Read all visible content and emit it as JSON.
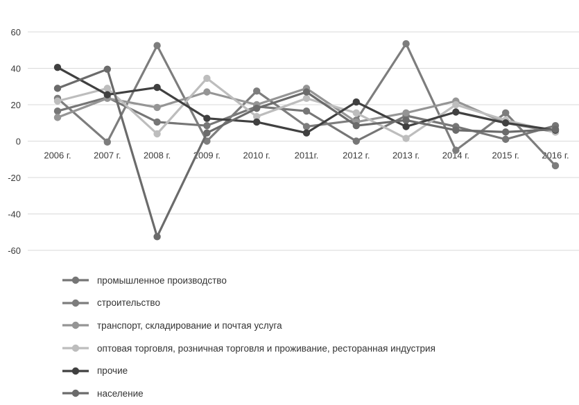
{
  "chart_data": {
    "type": "line",
    "unit_label": "%",
    "categories": [
      "2006 г.",
      "2007 г.",
      "2008 г.",
      "2009 г.",
      "2010 г.",
      "2011г.",
      "2012 г.",
      "2013 г.",
      "2014 г.",
      "2015 г.",
      "2016 г."
    ],
    "y_ticks": [
      "60",
      "40",
      "20",
      "0",
      "-20",
      "-40",
      "-60"
    ],
    "ylim": [
      -60,
      60
    ],
    "grid": true,
    "legend_position": "bottom",
    "series": [
      {
        "name": "промышленное производство",
        "color": "#767676",
        "values": [
          16.5,
          24,
          10.5,
          8.5,
          19,
          16.5,
          0,
          14,
          8,
          1,
          8.5
        ]
      },
      {
        "name": "строительство",
        "color": "#7d7d7d",
        "values": [
          23.5,
          -0.5,
          52.5,
          0,
          27.5,
          8,
          11.5,
          53.5,
          -5,
          15.5,
          -13.5
        ]
      },
      {
        "name": "транспорт, складирование и почтая услуга",
        "color": "#959595",
        "values": [
          13,
          23.5,
          18.5,
          27,
          20,
          29,
          10.5,
          15.5,
          22,
          10,
          5
        ]
      },
      {
        "name": "оптовая торговля, розничная торговля и проживание, ресторанная индустрия",
        "color": "#bdbdbd",
        "values": [
          22,
          29,
          4,
          34.5,
          13.5,
          23.5,
          15.5,
          1.5,
          20,
          11.5,
          5
        ]
      },
      {
        "name": "прочие",
        "color": "#404040",
        "values": [
          40.5,
          25.5,
          29.5,
          12.5,
          10.5,
          4.5,
          21.5,
          8,
          16,
          10,
          6
        ]
      },
      {
        "name": "население",
        "color": "#6b6b6b",
        "values": [
          29,
          39.5,
          -52.5,
          4.5,
          18,
          27,
          8.5,
          11.5,
          6,
          5,
          6.5
        ]
      }
    ]
  }
}
